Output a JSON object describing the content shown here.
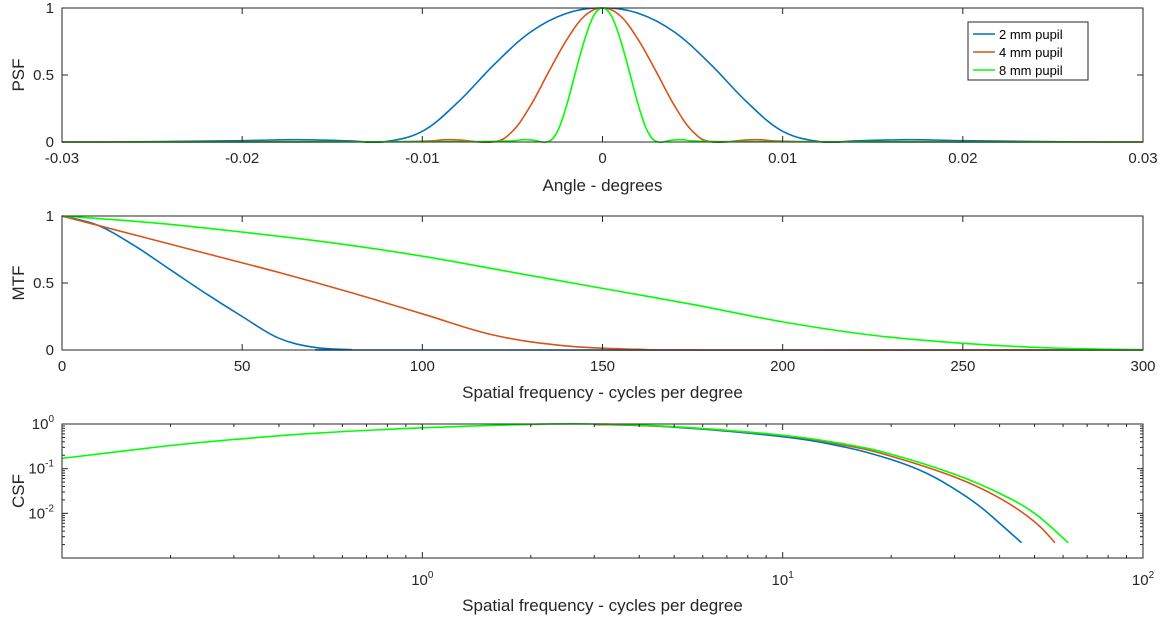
{
  "chart_data": [
    {
      "type": "line",
      "ylabel": "PSF",
      "xlabel": "Angle - degrees",
      "xlim": [
        -0.03,
        0.03
      ],
      "ylim": [
        0,
        1
      ],
      "xticks": [
        -0.03,
        -0.02,
        -0.01,
        0,
        0.01,
        0.02,
        0.03
      ],
      "xtick_labels": [
        "-0.03",
        "-0.02",
        "-0.01",
        "0",
        "0.01",
        "0.02",
        "0.03"
      ],
      "yticks": [
        0,
        0.5,
        1
      ],
      "ytick_labels": [
        "0",
        "0.5",
        "1"
      ],
      "legend": {
        "placement": "top-right",
        "entries": [
          "2 mm pupil",
          "4 mm pupil",
          "8 mm pupil"
        ]
      },
      "series": [
        {
          "name": "2 mm pupil",
          "color": "#0072bd",
          "x": [
            -0.03,
            -0.025,
            -0.02,
            -0.017,
            -0.014,
            -0.0122,
            -0.01,
            -0.008,
            -0.006,
            -0.004,
            -0.002,
            0,
            0.002,
            0.004,
            0.006,
            0.008,
            0.01,
            0.0122,
            0.014,
            0.017,
            0.02,
            0.025,
            0.03
          ],
          "y": [
            0,
            0.002,
            0.01,
            0.017,
            0.008,
            0,
            0.08,
            0.3,
            0.58,
            0.82,
            0.96,
            1,
            0.96,
            0.82,
            0.58,
            0.3,
            0.08,
            0,
            0.008,
            0.017,
            0.01,
            0.002,
            0
          ]
        },
        {
          "name": "4 mm pupil",
          "color": "#d95319",
          "x": [
            -0.03,
            -0.012,
            -0.0085,
            -0.0061,
            -0.005,
            -0.004,
            -0.003,
            -0.002,
            -0.001,
            0,
            0.001,
            0.002,
            0.003,
            0.004,
            0.005,
            0.0061,
            0.0085,
            0.012,
            0.03
          ],
          "y": [
            0,
            0.002,
            0.017,
            0,
            0.08,
            0.27,
            0.52,
            0.76,
            0.94,
            1,
            0.94,
            0.76,
            0.52,
            0.27,
            0.08,
            0,
            0.017,
            0.002,
            0
          ],
          "curve": true
        },
        {
          "name": "8 mm pupil",
          "color": "#00ff00",
          "x": [
            -0.03,
            -0.008,
            -0.0043,
            -0.0031,
            -0.0025,
            -0.002,
            -0.0015,
            -0.001,
            -0.0005,
            0,
            0.0005,
            0.001,
            0.0015,
            0.002,
            0.0025,
            0.0031,
            0.0043,
            0.008,
            0.03
          ],
          "y": [
            0,
            0.002,
            0.017,
            0,
            0.08,
            0.27,
            0.52,
            0.76,
            0.94,
            1,
            0.94,
            0.76,
            0.52,
            0.27,
            0.08,
            0,
            0.017,
            0.002,
            0
          ]
        }
      ]
    },
    {
      "type": "line",
      "ylabel": "MTF",
      "xlabel": "Spatial frequency - cycles per degree",
      "xlim": [
        0,
        300
      ],
      "ylim": [
        0,
        1
      ],
      "xticks": [
        0,
        50,
        100,
        150,
        200,
        250,
        300
      ],
      "xtick_labels": [
        "0",
        "50",
        "100",
        "150",
        "200",
        "250",
        "300"
      ],
      "yticks": [
        0,
        0.5,
        1
      ],
      "ytick_labels": [
        "0",
        "0.5",
        "1"
      ],
      "series": [
        {
          "name": "2 mm pupil",
          "color": "#0072bd",
          "x": [
            0,
            10,
            20,
            30,
            40,
            50,
            60,
            70,
            80,
            90,
            300
          ],
          "y": [
            1,
            0.93,
            0.78,
            0.6,
            0.42,
            0.25,
            0.09,
            0.02,
            0.003,
            0,
            0
          ]
        },
        {
          "name": "4 mm pupil",
          "color": "#d95319",
          "x": [
            0,
            20,
            40,
            60,
            80,
            100,
            120,
            140,
            160,
            180,
            300
          ],
          "y": [
            1,
            0.86,
            0.72,
            0.58,
            0.43,
            0.27,
            0.11,
            0.03,
            0.005,
            0,
            0
          ]
        },
        {
          "name": "8 mm pupil",
          "color": "#00ff00",
          "x": [
            0,
            25,
            50,
            75,
            100,
            125,
            150,
            175,
            200,
            225,
            250,
            275,
            300
          ],
          "y": [
            1,
            0.95,
            0.88,
            0.8,
            0.7,
            0.58,
            0.46,
            0.34,
            0.21,
            0.11,
            0.05,
            0.015,
            0.003
          ]
        }
      ]
    },
    {
      "type": "line",
      "ylabel": "CSF",
      "xlabel": "Spatial frequency - cycles per degree",
      "xscale": "log",
      "yscale": "log",
      "xlim": [
        0.1,
        100
      ],
      "ylim": [
        0.001,
        1
      ],
      "xticks": [
        1,
        10,
        100
      ],
      "xtick_labels": [
        {
          "base": "10",
          "exp": "0"
        },
        {
          "base": "10",
          "exp": "1"
        },
        {
          "base": "10",
          "exp": "2"
        }
      ],
      "yticks": [
        0.01,
        0.1,
        1
      ],
      "ytick_labels": [
        {
          "base": "10",
          "exp": "-2"
        },
        {
          "base": "10",
          "exp": "-1"
        },
        {
          "base": "10",
          "exp": "0"
        }
      ],
      "series": [
        {
          "name": "2 mm pupil",
          "color": "#0072bd",
          "x": [
            3,
            5,
            10,
            15,
            20,
            25,
            30,
            35,
            40,
            46
          ],
          "y": [
            0.98,
            0.85,
            0.52,
            0.3,
            0.16,
            0.08,
            0.035,
            0.015,
            0.006,
            0.0022
          ]
        },
        {
          "name": "4 mm pupil",
          "color": "#d95319",
          "x": [
            3,
            5,
            10,
            15,
            20,
            30,
            40,
            50,
            57
          ],
          "y": [
            0.98,
            0.86,
            0.55,
            0.33,
            0.19,
            0.065,
            0.022,
            0.0065,
            0.0022
          ]
        },
        {
          "name": "8 mm pupil",
          "color": "#00ff00",
          "x": [
            0.1,
            0.2,
            0.3,
            0.5,
            1,
            2,
            3,
            5,
            10,
            15,
            20,
            30,
            40,
            50,
            62
          ],
          "y": [
            0.17,
            0.33,
            0.45,
            0.62,
            0.82,
            0.98,
            1,
            0.87,
            0.56,
            0.35,
            0.21,
            0.075,
            0.028,
            0.01,
            0.0022
          ]
        }
      ]
    }
  ]
}
